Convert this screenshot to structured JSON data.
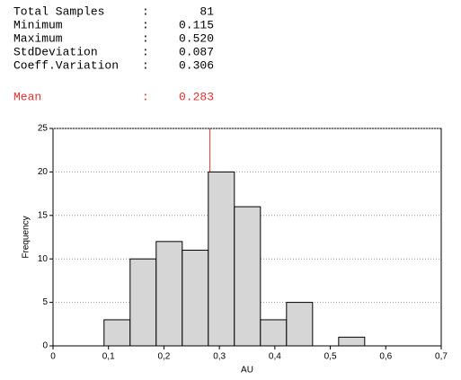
{
  "stats": [
    {
      "label": "Total Samples",
      "value": "81"
    },
    {
      "label": "Minimum",
      "value": "0.115"
    },
    {
      "label": "Maximum",
      "value": "0.520"
    },
    {
      "label": "StdDeviation",
      "value": "0.087"
    },
    {
      "label": "Coeff.Variation",
      "value": "0.306"
    }
  ],
  "separator": ":",
  "mean": {
    "label": "Mean",
    "value": "0.283"
  },
  "chart_data": {
    "type": "histogram",
    "bins": [
      0.092,
      0.139,
      0.186,
      0.233,
      0.28,
      0.327,
      0.374,
      0.421,
      0.468,
      0.515,
      0.562
    ],
    "values": [
      3,
      10,
      12,
      11,
      20,
      16,
      3,
      5,
      0,
      1
    ],
    "color": "#d6d6d6",
    "mean_line": 0.283,
    "mean_color": "#e03030",
    "xlim": [
      0,
      0.7
    ],
    "xticks": [
      0,
      {
        "value": 0.1,
        "label": "0,1"
      },
      {
        "value": 0.2,
        "label": "0,2"
      },
      {
        "value": 0.3,
        "label": "0,3"
      },
      {
        "value": 0.4,
        "label": "0,4"
      },
      {
        "value": 0.5,
        "label": "0,5"
      },
      {
        "value": 0.6,
        "label": "0,6"
      },
      {
        "value": 0.7,
        "label": "0,7"
      }
    ],
    "ylim": [
      0,
      25
    ],
    "yticks": [
      0,
      5,
      10,
      15,
      20,
      25
    ],
    "grid": true,
    "xlabel": "AU",
    "ylabel": "Frequency"
  }
}
